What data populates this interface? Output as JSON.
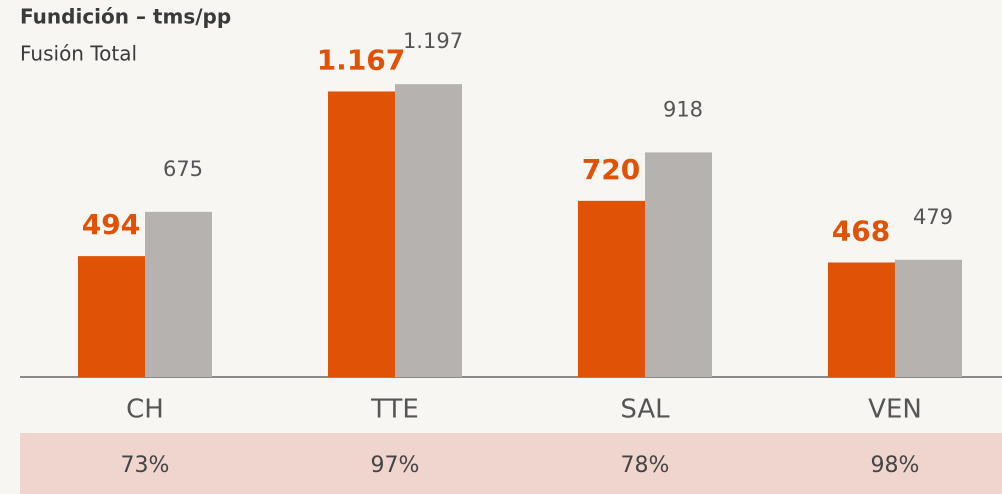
{
  "chart_data": {
    "type": "bar",
    "title": "Fundición – tms/pp",
    "subtitle": "Fusión Total",
    "categories": [
      "CH",
      "TTE",
      "SAL",
      "VEN"
    ],
    "series": [
      {
        "color": "#e05206",
        "values": [
          494,
          1167,
          720,
          468
        ],
        "value_labels": [
          "494",
          "1.167",
          "720",
          "468"
        ]
      },
      {
        "color": "#b6b2af",
        "values": [
          675,
          1197,
          918,
          479
        ],
        "value_labels": [
          "675",
          "1.197",
          "918",
          "479"
        ]
      }
    ],
    "ylim": [
      0,
      1500
    ],
    "footer": [
      "73%",
      "97%",
      "78%",
      "98%"
    ]
  }
}
